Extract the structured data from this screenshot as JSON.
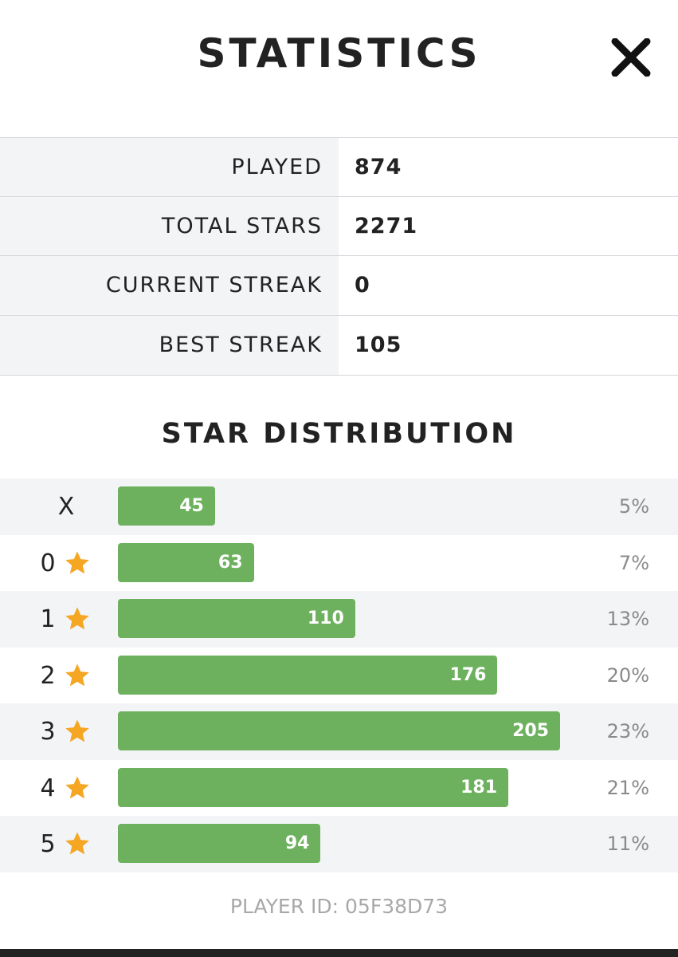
{
  "header": {
    "title": "STATISTICS"
  },
  "stats": [
    {
      "label": "PLAYED",
      "value": 874
    },
    {
      "label": "TOTAL STARS",
      "value": 2271
    },
    {
      "label": "CURRENT STREAK",
      "value": 0
    },
    {
      "label": "BEST STREAK",
      "value": 105
    }
  ],
  "distribution": {
    "title": "STAR DISTRIBUTION",
    "rows": [
      {
        "label": "X",
        "count": 45,
        "percent": "5%"
      },
      {
        "label": "0",
        "count": 63,
        "percent": "7%"
      },
      {
        "label": "1",
        "count": 110,
        "percent": "13%"
      },
      {
        "label": "2",
        "count": 176,
        "percent": "20%"
      },
      {
        "label": "3",
        "count": 205,
        "percent": "23%"
      },
      {
        "label": "4",
        "count": 181,
        "percent": "21%"
      },
      {
        "label": "5",
        "count": 94,
        "percent": "11%"
      }
    ]
  },
  "footer": "PLAYER ID: 05F38D73"
}
